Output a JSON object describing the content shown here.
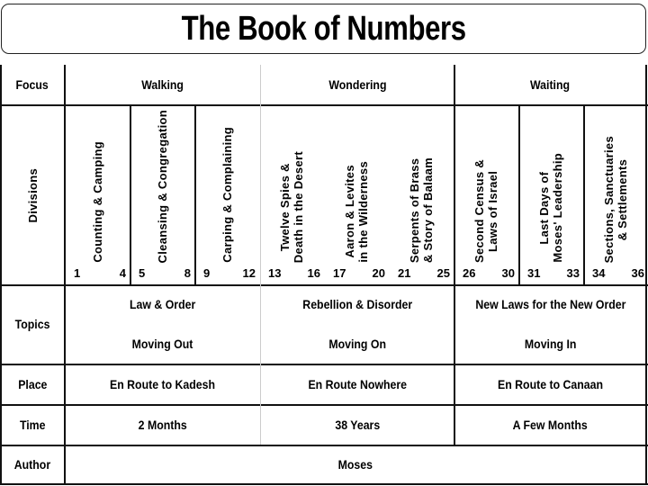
{
  "title": "The Book of Numbers",
  "rows": {
    "focus": "Focus",
    "divisions": "Divisions",
    "topics": "Topics",
    "place": "Place",
    "time": "Time",
    "author": "Author"
  },
  "focus": [
    "Walking",
    "Wondering",
    "Waiting"
  ],
  "divisions": [
    {
      "lines": [
        "Counting & Camping"
      ],
      "start": "1",
      "end": "4"
    },
    {
      "lines": [
        "Cleansing & Congregation"
      ],
      "start": "5",
      "end": "8"
    },
    {
      "lines": [
        "Carping & Complaining"
      ],
      "start": "9",
      "end": "12"
    },
    {
      "lines": [
        "Twelve Spies &",
        "Death in the Desert"
      ],
      "start": "13",
      "end": "16"
    },
    {
      "lines": [
        "Aaron & Levites",
        "in the Wilderness"
      ],
      "start": "17",
      "end": "20"
    },
    {
      "lines": [
        "Serpents of Brass",
        "& Story of Balaam"
      ],
      "start": "21",
      "end": "25"
    },
    {
      "lines": [
        "Second Census &",
        "Laws of Israel"
      ],
      "start": "26",
      "end": "30"
    },
    {
      "lines": [
        "Last Days of",
        "Moses' Leadership"
      ],
      "start": "31",
      "end": "33"
    },
    {
      "lines": [
        "Sections, Sanctuaries",
        "& Settlements"
      ],
      "start": "34",
      "end": "36"
    }
  ],
  "topics": [
    {
      "top": "Law & Order",
      "bottom": "Moving Out"
    },
    {
      "top": "Rebellion & Disorder",
      "bottom": "Moving On"
    },
    {
      "top": "New Laws for the New Order",
      "bottom": "Moving In"
    }
  ],
  "place": [
    "En Route to Kadesh",
    "En Route Nowhere",
    "En Route to Canaan"
  ],
  "time": [
    "2 Months",
    "38 Years",
    "A Few Months"
  ],
  "author": "Moses"
}
